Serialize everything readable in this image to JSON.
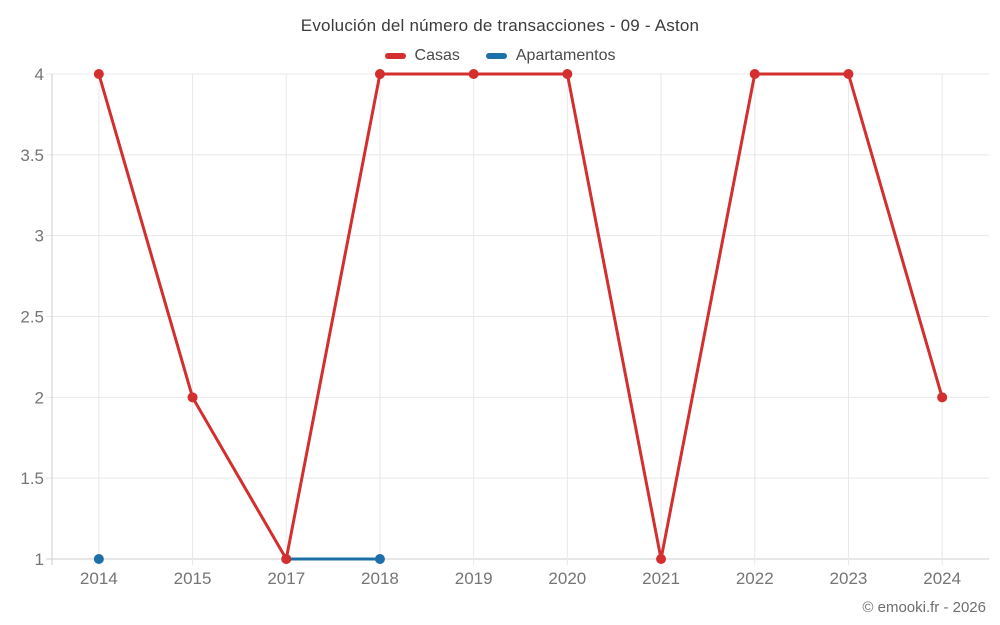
{
  "title": "Evolución del número de transacciones - 09 - Aston",
  "watermark": "© emooki.fr - 2026",
  "legend": {
    "items": [
      {
        "label": "Casas",
        "color": "#d32f2f"
      },
      {
        "label": "Apartamentos",
        "color": "#1d6fa8"
      }
    ]
  },
  "chart_data": {
    "type": "line",
    "title": "Evolución del número de transacciones - 09 - Aston",
    "categories": [
      "2014",
      "2015",
      "2017",
      "2018",
      "2019",
      "2020",
      "2021",
      "2022",
      "2023",
      "2024"
    ],
    "series": [
      {
        "name": "Casas",
        "color": "#d32f2f",
        "values": [
          4,
          2,
          1,
          4,
          4,
          4,
          1,
          4,
          4,
          2
        ]
      },
      {
        "name": "Apartamentos",
        "color": "#1d6fa8",
        "values": [
          1,
          null,
          1,
          1,
          null,
          null,
          null,
          null,
          null,
          null
        ]
      }
    ],
    "xlabel": "",
    "ylabel": "",
    "ylim": [
      1,
      4
    ],
    "yticks": [
      1,
      1.5,
      2,
      2.5,
      3,
      3.5,
      4
    ],
    "grid": true,
    "legend_position": "top"
  }
}
